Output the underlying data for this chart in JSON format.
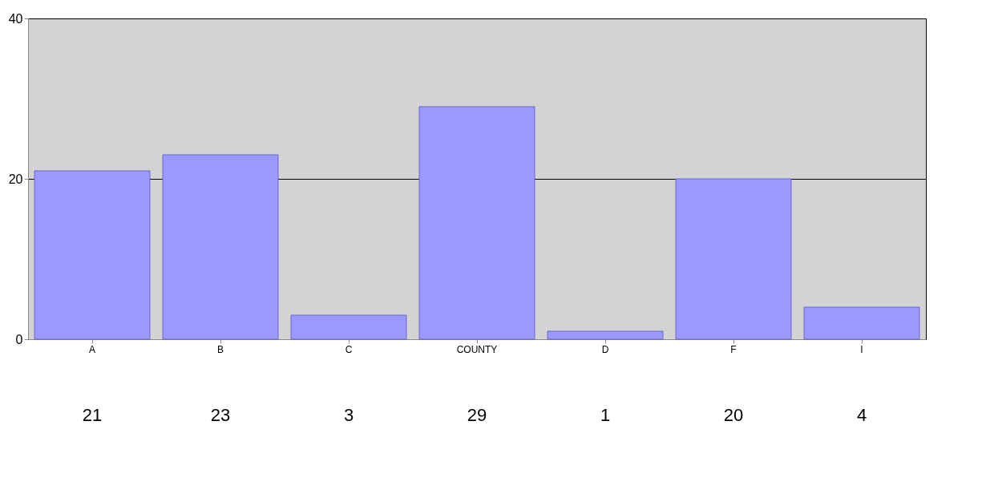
{
  "chart_data": {
    "type": "bar",
    "categories": [
      "A",
      "B",
      "C",
      "COUNTY",
      "D",
      "F",
      "I"
    ],
    "values": [
      21,
      23,
      3,
      29,
      1,
      20,
      4
    ],
    "color": "#9999ff",
    "ylim": [
      0,
      40
    ],
    "yticks": [
      0,
      20,
      40
    ],
    "grid": "y",
    "data_labels": true
  }
}
